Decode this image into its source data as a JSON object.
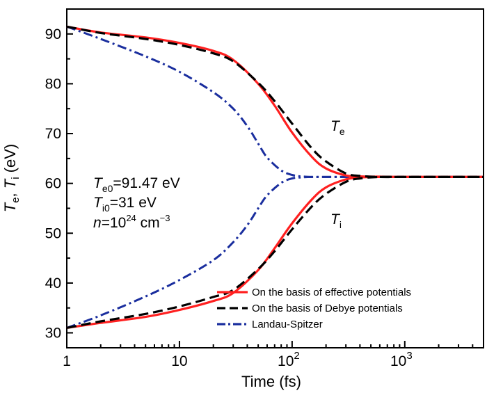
{
  "chart_data": {
    "type": "line",
    "xlabel": "Time (fs)",
    "ylabel_parts": [
      "T",
      "e",
      ", ",
      "T",
      "i",
      " (eV)"
    ],
    "xscale": "log",
    "xlim": [
      1,
      5000
    ],
    "ylim": [
      27,
      95
    ],
    "x_ticks": [
      {
        "value": 1,
        "label": "1",
        "sup": ""
      },
      {
        "value": 10,
        "label": "10",
        "sup": ""
      },
      {
        "value": 100,
        "label": "10",
        "sup": "2"
      },
      {
        "value": 1000,
        "label": "10",
        "sup": "3"
      }
    ],
    "y_ticks": [
      30,
      40,
      50,
      60,
      70,
      80,
      90
    ],
    "grid": false,
    "legend": {
      "placement": "bottom-right",
      "entries": [
        {
          "label": "On the basis of effective potentials",
          "series": 0
        },
        {
          "label": "On the basis of Debye potentials",
          "series": 1
        },
        {
          "label": "Landau-Spitzer",
          "series": 2
        }
      ]
    },
    "annotations": {
      "te_label": {
        "main": "T",
        "sub": "e"
      },
      "ti_label": {
        "main": "T",
        "sub": "i"
      },
      "params": [
        {
          "main": "T",
          "sub": "e0",
          "rest": "=91.47 eV"
        },
        {
          "main": "T",
          "sub": "i0",
          "rest": "=31 eV"
        },
        {
          "main": "n",
          "mid": "=10",
          "sup": "24",
          "rest": " cm",
          "sup2": "−3"
        }
      ]
    },
    "series": [
      {
        "label": "On the basis of effective potentials",
        "color": "#ff2020",
        "dash": "solid",
        "Te": {
          "x": [
            1,
            2,
            5,
            10,
            20,
            30,
            50,
            70,
            100,
            150,
            200,
            300,
            400,
            600,
            1000,
            5000
          ],
          "y": [
            91.47,
            90.3,
            89.3,
            88.2,
            86.6,
            84.8,
            80.0,
            75.6,
            70.2,
            65.3,
            63.0,
            61.6,
            61.4,
            61.35,
            61.3,
            61.3
          ]
        },
        "Ti": {
          "x": [
            1,
            2,
            5,
            10,
            20,
            30,
            50,
            70,
            100,
            150,
            200,
            300,
            400,
            600,
            1000,
            5000
          ],
          "y": [
            31.0,
            32.0,
            33.2,
            34.6,
            36.4,
            38.0,
            42.6,
            47.0,
            52.0,
            56.8,
            59.2,
            60.8,
            61.2,
            61.3,
            61.3,
            61.3
          ]
        }
      },
      {
        "label": "On the basis of Debye potentials",
        "color": "#000000",
        "dash": "dashed",
        "Te": {
          "x": [
            1,
            2,
            5,
            10,
            20,
            30,
            50,
            70,
            100,
            150,
            200,
            300,
            400,
            600,
            1000,
            5000
          ],
          "y": [
            91.47,
            90.2,
            89.0,
            87.8,
            86.1,
            84.5,
            80.2,
            76.5,
            72.0,
            67.0,
            64.4,
            62.0,
            61.5,
            61.3,
            61.3,
            61.3
          ]
        },
        "Ti": {
          "x": [
            1,
            2,
            5,
            10,
            20,
            30,
            50,
            70,
            100,
            150,
            200,
            300,
            400,
            600,
            1000,
            5000
          ],
          "y": [
            31.0,
            32.3,
            33.8,
            35.3,
            37.2,
            38.6,
            42.8,
            46.4,
            50.8,
            55.4,
            57.9,
            60.3,
            61.0,
            61.3,
            61.3,
            61.3
          ]
        }
      },
      {
        "label": "Landau-Spitzer",
        "color": "#1a2e9e",
        "dash": "dashdot",
        "Te": {
          "x": [
            1,
            2,
            5,
            10,
            20,
            30,
            40,
            50,
            60,
            80,
            100,
            120,
            150,
            200,
            300,
            500,
            1000,
            5000
          ],
          "y": [
            91.47,
            89.0,
            85.5,
            82.4,
            78.3,
            75.0,
            71.5,
            68.0,
            65.2,
            62.6,
            61.7,
            61.4,
            61.3,
            61.3,
            61.3,
            61.3,
            61.3,
            61.3
          ]
        },
        "Ti": {
          "x": [
            1,
            2,
            5,
            10,
            20,
            30,
            40,
            50,
            60,
            80,
            100,
            120,
            150,
            200,
            300,
            500,
            1000,
            5000
          ],
          "y": [
            31.0,
            33.5,
            37.3,
            40.6,
            44.6,
            48.2,
            51.6,
            55.0,
            57.6,
            60.1,
            61.0,
            61.2,
            61.3,
            61.3,
            61.3,
            61.3,
            61.3,
            61.3
          ]
        }
      }
    ]
  }
}
